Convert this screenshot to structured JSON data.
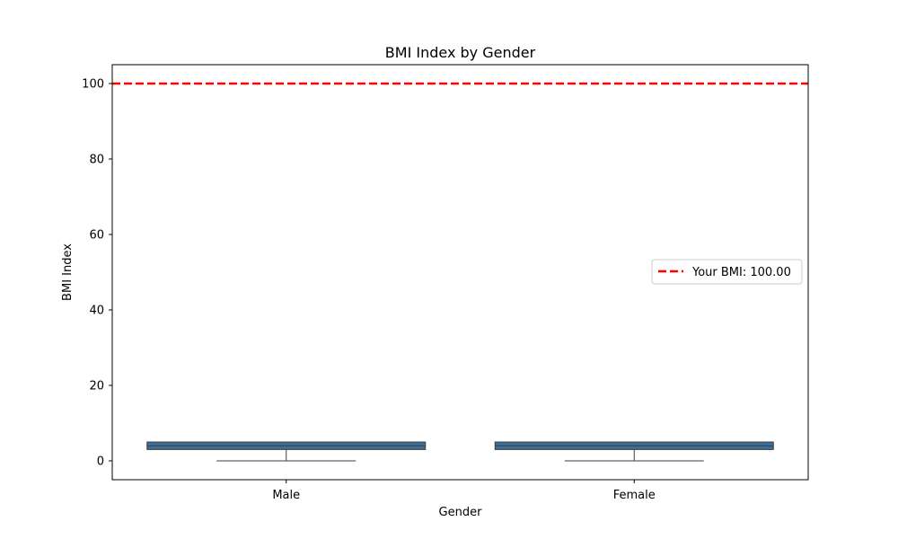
{
  "chart_data": {
    "type": "box",
    "title": "BMI Index by Gender",
    "xlabel": "Gender",
    "ylabel": "BMI Index",
    "categories": [
      "Male",
      "Female"
    ],
    "boxes": [
      {
        "category": "Male",
        "whisker_low": 0,
        "q1": 3,
        "median": 4,
        "q3": 5,
        "whisker_high": 5
      },
      {
        "category": "Female",
        "whisker_low": 0,
        "q1": 3,
        "median": 4,
        "q3": 5,
        "whisker_high": 5
      }
    ],
    "ylim": [
      -5,
      105
    ],
    "yticks": [
      0,
      20,
      40,
      60,
      80,
      100
    ],
    "reference_line": {
      "value": 100,
      "label": "Your BMI: 100.00",
      "color": "#ff0000",
      "style": "dashed"
    },
    "box_color": "#3b6e99",
    "grid": false,
    "legend_position": "center-right"
  }
}
